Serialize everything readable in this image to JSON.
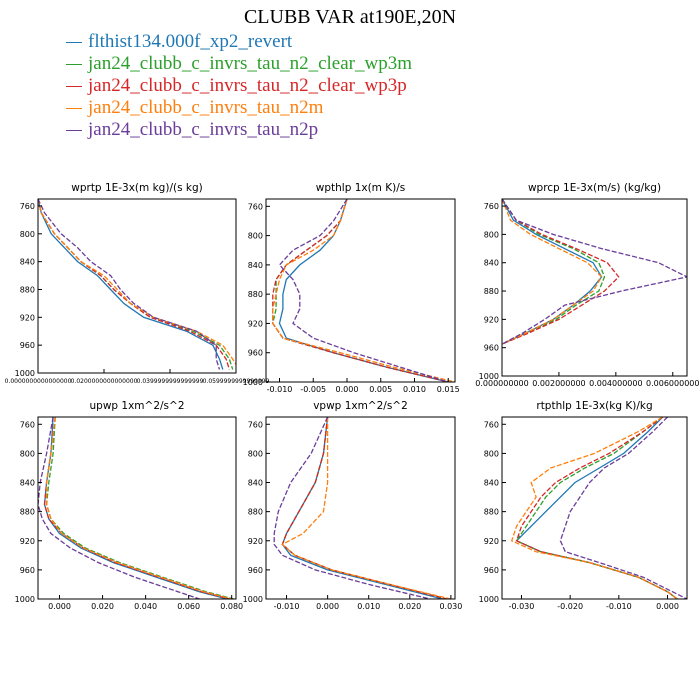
{
  "title": "CLUBB VAR at190E,20N",
  "colors": {
    "blue": "#1f77b4",
    "green": "#2ca02c",
    "red": "#d62728",
    "orange": "#ff7f0e",
    "purple": "#6a3d9a"
  },
  "legend": [
    {
      "label": "flthist134.000f_xp2_revert",
      "color": "#1f77b4",
      "dash": "solid"
    },
    {
      "label": "jan24_clubb_c_invrs_tau_n2_clear_wp3m",
      "color": "#2ca02c",
      "dash": "dashed"
    },
    {
      "label": "jan24_clubb_c_invrs_tau_n2_clear_wp3p",
      "color": "#d62728",
      "dash": "dashed"
    },
    {
      "label": "jan24_clubb_c_invrs_tau_n2m",
      "color": "#ff7f0e",
      "dash": "dashed"
    },
    {
      "label": "jan24_clubb_c_invrs_tau_n2p",
      "color": "#6a3d9a",
      "dash": "dashed"
    }
  ],
  "chart_data": [
    {
      "type": "line",
      "title": "wprtp  1E-3x(m kg)/(s kg)",
      "xlim": [
        0.0,
        0.06
      ],
      "ylim": [
        1000,
        750
      ],
      "xticks": [
        0.0,
        0.02,
        0.04,
        0.06
      ],
      "xtick_labels": [
        "0.0000000000000000",
        "0.0200000000000000",
        "0.0399999999999999",
        "0.0599999999999999"
      ],
      "yticks": [
        760,
        800,
        840,
        880,
        920,
        960,
        1000
      ],
      "y": [
        750,
        770,
        800,
        820,
        840,
        860,
        880,
        900,
        920,
        940,
        960,
        980,
        995
      ],
      "series": [
        {
          "x": [
            0.0,
            0.001,
            0.004,
            0.008,
            0.012,
            0.018,
            0.022,
            0.026,
            0.032,
            0.045,
            0.053,
            0.055,
            0.056
          ]
        },
        {
          "x": [
            0.0,
            0.001,
            0.005,
            0.009,
            0.013,
            0.019,
            0.023,
            0.028,
            0.034,
            0.047,
            0.055,
            0.058,
            0.059
          ]
        },
        {
          "x": [
            0.0,
            0.001,
            0.005,
            0.009,
            0.013,
            0.019,
            0.023,
            0.028,
            0.034,
            0.046,
            0.054,
            0.057,
            0.058
          ]
        },
        {
          "x": [
            0.0,
            0.001,
            0.005,
            0.009,
            0.013,
            0.02,
            0.024,
            0.028,
            0.035,
            0.048,
            0.056,
            0.059,
            0.061
          ]
        },
        {
          "x": [
            0.0,
            0.002,
            0.007,
            0.012,
            0.016,
            0.022,
            0.025,
            0.029,
            0.035,
            0.048,
            0.054,
            0.054,
            0.055
          ]
        }
      ]
    },
    {
      "type": "line",
      "title": "wpthlp  1x(m K)/s",
      "xlim": [
        -0.012,
        0.016
      ],
      "ylim": [
        1000,
        750
      ],
      "xticks": [
        -0.01,
        -0.005,
        0.0,
        0.005,
        0.01,
        0.015
      ],
      "xtick_labels": [
        "-0.010",
        "-0.005",
        "0.000",
        "0.005",
        "0.010",
        "0.015"
      ],
      "yticks": [
        760,
        800,
        840,
        880,
        920,
        960,
        1000
      ],
      "y": [
        750,
        780,
        800,
        820,
        840,
        860,
        880,
        900,
        920,
        940,
        960,
        980,
        1000
      ],
      "series": [
        {
          "x": [
            0.0,
            -0.001,
            -0.002,
            -0.004,
            -0.007,
            -0.009,
            -0.0095,
            -0.0095,
            -0.01,
            -0.009,
            -0.002,
            0.006,
            0.015
          ]
        },
        {
          "x": [
            0.0,
            -0.001,
            -0.003,
            -0.006,
            -0.009,
            -0.0105,
            -0.0105,
            -0.0105,
            -0.011,
            -0.0095,
            -0.002,
            0.006,
            0.015
          ]
        },
        {
          "x": [
            0.0,
            -0.001,
            -0.003,
            -0.006,
            -0.009,
            -0.0105,
            -0.011,
            -0.011,
            -0.011,
            -0.0095,
            -0.002,
            0.006,
            0.015
          ]
        },
        {
          "x": [
            0.0,
            -0.001,
            -0.002,
            -0.005,
            -0.009,
            -0.01,
            -0.0105,
            -0.011,
            -0.011,
            -0.0095,
            -0.001,
            0.007,
            0.016
          ]
        },
        {
          "x": [
            0.0,
            -0.002,
            -0.004,
            -0.008,
            -0.01,
            -0.008,
            -0.007,
            -0.007,
            -0.008,
            -0.005,
            0.001,
            0.008,
            0.015
          ]
        }
      ]
    },
    {
      "type": "line",
      "title": "wprcp  1E-3x(m/s) (kg/kg)",
      "xlim": [
        0.0,
        0.0065
      ],
      "ylim": [
        1000,
        750
      ],
      "xticks": [
        0.0,
        0.002,
        0.004,
        0.006
      ],
      "xtick_labels": [
        "0.000000000",
        "0.002000000",
        "0.004000000",
        "0.006000000"
      ],
      "yticks": [
        760,
        800,
        840,
        880,
        920,
        960,
        1000
      ],
      "y": [
        750,
        780,
        800,
        820,
        840,
        860,
        880,
        900,
        920,
        940,
        955
      ],
      "series": [
        {
          "x": [
            0.0,
            0.0004,
            0.0012,
            0.0022,
            0.0032,
            0.0035,
            0.0031,
            0.0025,
            0.0018,
            0.0008,
            0.0
          ]
        },
        {
          "x": [
            0.0,
            0.0005,
            0.0013,
            0.0025,
            0.0034,
            0.0036,
            0.0034,
            0.0026,
            0.0019,
            0.0008,
            0.0
          ]
        },
        {
          "x": [
            0.0,
            0.0005,
            0.0014,
            0.0026,
            0.0037,
            0.0041,
            0.0036,
            0.0028,
            0.002,
            0.0009,
            0.0
          ]
        },
        {
          "x": [
            0.0,
            0.0003,
            0.001,
            0.002,
            0.003,
            0.0035,
            0.0032,
            0.0025,
            0.0018,
            0.0008,
            0.0
          ]
        },
        {
          "x": [
            0.0,
            0.0005,
            0.0018,
            0.0035,
            0.0055,
            0.0065,
            0.0042,
            0.0022,
            0.0015,
            0.0007,
            0.0
          ]
        }
      ]
    },
    {
      "type": "line",
      "title": "upwp  1xm^2/s^2",
      "xlim": [
        -0.01,
        0.082
      ],
      "ylim": [
        1000,
        750
      ],
      "xticks": [
        0.0,
        0.02,
        0.04,
        0.06,
        0.08
      ],
      "xtick_labels": [
        "0.000",
        "0.020",
        "0.040",
        "0.060",
        "0.080"
      ],
      "yticks": [
        760,
        800,
        840,
        880,
        920,
        960,
        1000
      ],
      "y": [
        750,
        800,
        840,
        870,
        890,
        910,
        930,
        950,
        970,
        990,
        1000
      ],
      "series": [
        {
          "x": [
            -0.003,
            -0.004,
            -0.006,
            -0.007,
            -0.005,
            0.0,
            0.01,
            0.025,
            0.045,
            0.065,
            0.078
          ]
        },
        {
          "x": [
            -0.002,
            -0.003,
            -0.005,
            -0.006,
            -0.004,
            0.002,
            0.012,
            0.028,
            0.048,
            0.068,
            0.081
          ]
        },
        {
          "x": [
            -0.002,
            -0.004,
            -0.006,
            -0.007,
            -0.005,
            0.001,
            0.011,
            0.026,
            0.046,
            0.066,
            0.079
          ]
        },
        {
          "x": [
            -0.002,
            -0.004,
            -0.006,
            -0.006,
            -0.004,
            0.001,
            0.011,
            0.027,
            0.047,
            0.067,
            0.08
          ]
        },
        {
          "x": [
            -0.003,
            -0.006,
            -0.009,
            -0.01,
            -0.008,
            -0.004,
            0.005,
            0.018,
            0.035,
            0.055,
            0.065
          ]
        }
      ]
    },
    {
      "type": "line",
      "title": "vpwp  1xm^2/s^2",
      "xlim": [
        -0.015,
        0.031
      ],
      "ylim": [
        1000,
        750
      ],
      "xticks": [
        -0.01,
        0.0,
        0.01,
        0.02,
        0.03
      ],
      "xtick_labels": [
        "-0.010",
        "0.000",
        "0.010",
        "0.020",
        "0.030"
      ],
      "yticks": [
        760,
        800,
        840,
        880,
        920,
        960,
        1000
      ],
      "y": [
        750,
        800,
        840,
        880,
        910,
        925,
        940,
        960,
        980,
        1000
      ],
      "series": [
        {
          "x": [
            0.0,
            -0.001,
            -0.003,
            -0.007,
            -0.01,
            -0.011,
            -0.009,
            0.0,
            0.014,
            0.028
          ]
        },
        {
          "x": [
            0.0,
            -0.001,
            -0.003,
            -0.007,
            -0.01,
            -0.011,
            -0.008,
            0.001,
            0.015,
            0.029
          ]
        },
        {
          "x": [
            0.0,
            -0.001,
            -0.003,
            -0.007,
            -0.01,
            -0.011,
            -0.008,
            0.001,
            0.015,
            0.029
          ]
        },
        {
          "x": [
            0.0,
            0.0,
            0.0,
            -0.001,
            -0.006,
            -0.011,
            -0.008,
            0.001,
            0.015,
            0.03
          ]
        },
        {
          "x": [
            0.0,
            -0.004,
            -0.009,
            -0.012,
            -0.013,
            -0.013,
            -0.011,
            -0.003,
            0.01,
            0.025
          ]
        }
      ]
    },
    {
      "type": "line",
      "title": "rtpthlp  1E-3x(kg K)/kg",
      "xlim": [
        -0.034,
        0.004
      ],
      "ylim": [
        1000,
        750
      ],
      "xticks": [
        -0.03,
        -0.02,
        -0.01,
        0.0
      ],
      "xtick_labels": [
        "-0.030",
        "-0.020",
        "-0.010",
        "0.000"
      ],
      "yticks": [
        760,
        800,
        840,
        880,
        920,
        960,
        1000
      ],
      "y": [
        750,
        770,
        800,
        820,
        840,
        860,
        880,
        900,
        920,
        935,
        950,
        970,
        990,
        1000
      ],
      "series": [
        {
          "x": [
            -0.001,
            -0.004,
            -0.009,
            -0.014,
            -0.019,
            -0.022,
            -0.025,
            -0.028,
            -0.031,
            -0.026,
            -0.016,
            -0.006,
            0.0,
            0.002
          ]
        },
        {
          "x": [
            -0.001,
            -0.005,
            -0.011,
            -0.017,
            -0.022,
            -0.025,
            -0.027,
            -0.029,
            -0.031,
            -0.026,
            -0.016,
            -0.006,
            0.0,
            0.002
          ]
        },
        {
          "x": [
            -0.001,
            -0.005,
            -0.012,
            -0.018,
            -0.023,
            -0.026,
            -0.028,
            -0.03,
            -0.031,
            -0.026,
            -0.016,
            -0.006,
            0.0,
            0.002
          ]
        },
        {
          "x": [
            -0.001,
            -0.006,
            -0.015,
            -0.024,
            -0.028,
            -0.027,
            -0.029,
            -0.031,
            -0.032,
            -0.027,
            -0.016,
            -0.006,
            0.0,
            0.002
          ]
        },
        {
          "x": [
            0.0,
            -0.003,
            -0.008,
            -0.013,
            -0.016,
            -0.018,
            -0.02,
            -0.021,
            -0.022,
            -0.021,
            -0.014,
            -0.005,
            0.001,
            0.004
          ]
        }
      ]
    }
  ]
}
